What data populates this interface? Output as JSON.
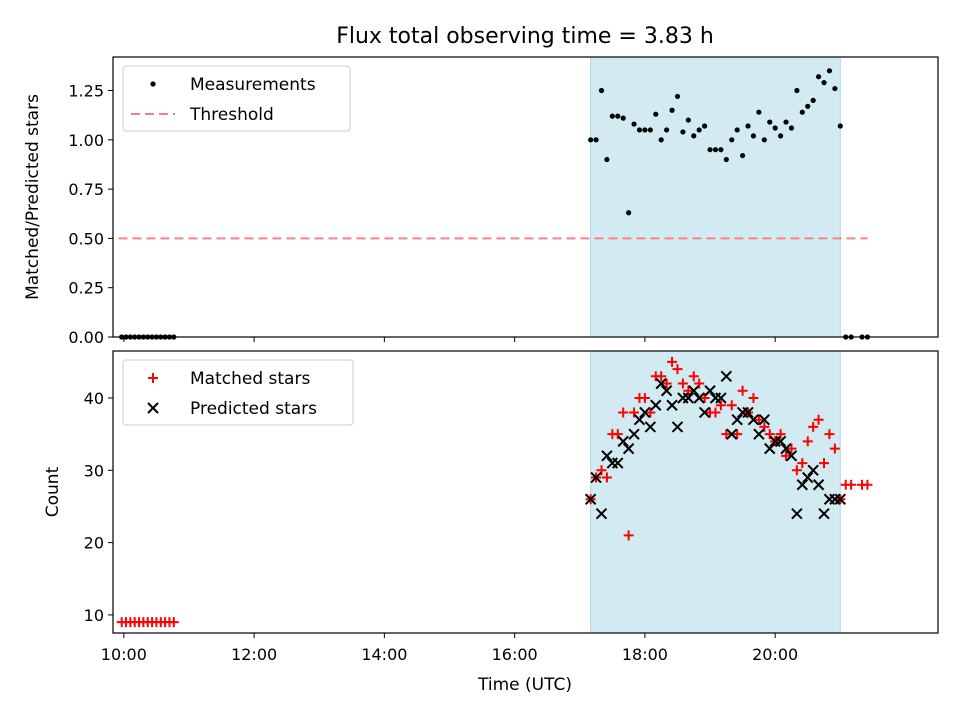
{
  "figure": {
    "title": "Flux total observing time = 3.83 h",
    "xlabel": "Time (UTC)",
    "x_ticks": [
      "10:00",
      "12:00",
      "14:00",
      "16:00",
      "18:00",
      "20:00"
    ]
  },
  "chart_data": [
    {
      "type": "scatter",
      "panel": "top",
      "ylabel": "Matched/Predicted stars",
      "xlim": [
        "09:50",
        "22:30"
      ],
      "ylim": [
        0,
        1.42
      ],
      "yticks": [
        "0.00",
        "0.25",
        "0.50",
        "0.75",
        "1.00",
        "1.25"
      ],
      "observing_window": [
        "17:10",
        "21:00"
      ],
      "shade_color": "#add8e6",
      "legend": [
        "Measurements",
        "Threshold"
      ],
      "series": [
        {
          "name": "Measurements",
          "color": "#000000",
          "marker": "dot",
          "x": [
            "09:58",
            "10:02",
            "10:06",
            "10:10",
            "10:14",
            "10:18",
            "10:22",
            "10:26",
            "10:30",
            "10:34",
            "10:38",
            "10:42",
            "10:46",
            "17:10",
            "17:15",
            "17:20",
            "17:25",
            "17:30",
            "17:35",
            "17:40",
            "17:45",
            "17:50",
            "17:55",
            "18:00",
            "18:05",
            "18:10",
            "18:15",
            "18:20",
            "18:25",
            "18:30",
            "18:35",
            "18:40",
            "18:45",
            "18:50",
            "18:55",
            "19:00",
            "19:05",
            "19:10",
            "19:15",
            "19:20",
            "19:25",
            "19:30",
            "19:35",
            "19:40",
            "19:45",
            "19:50",
            "19:55",
            "20:00",
            "20:05",
            "20:10",
            "20:15",
            "20:20",
            "20:25",
            "20:30",
            "20:35",
            "20:40",
            "20:45",
            "20:50",
            "20:55",
            "21:00",
            "21:05",
            "21:10",
            "21:20",
            "21:25"
          ],
          "y": [
            0,
            0,
            0,
            0,
            0,
            0,
            0,
            0,
            0,
            0,
            0,
            0,
            0,
            1.0,
            1.0,
            1.25,
            0.9,
            1.12,
            1.12,
            1.11,
            0.63,
            1.08,
            1.05,
            1.05,
            1.05,
            1.13,
            1.0,
            1.05,
            1.15,
            1.22,
            1.04,
            1.1,
            1.02,
            1.05,
            1.07,
            0.95,
            0.95,
            0.95,
            0.9,
            1.0,
            1.05,
            0.92,
            1.07,
            1.02,
            1.14,
            1.0,
            1.09,
            1.06,
            1.02,
            1.09,
            1.06,
            1.25,
            1.14,
            1.17,
            1.2,
            1.32,
            1.29,
            1.35,
            1.26,
            1.07,
            0,
            0,
            0,
            0
          ]
        },
        {
          "name": "Threshold",
          "color": "#ff7f7f",
          "style": "dashed",
          "x": [
            "09:55",
            "21:25"
          ],
          "y": [
            0.5,
            0.5
          ]
        }
      ]
    },
    {
      "type": "scatter",
      "panel": "bottom",
      "ylabel": "Count",
      "xlim": [
        "09:50",
        "22:30"
      ],
      "ylim": [
        7.5,
        46.5
      ],
      "yticks": [
        "10",
        "20",
        "30",
        "40"
      ],
      "observing_window": [
        "17:10",
        "21:00"
      ],
      "shade_color": "#add8e6",
      "legend": [
        "Matched stars",
        "Predicted stars"
      ],
      "series": [
        {
          "name": "Matched stars",
          "color": "#ff0000",
          "marker": "plus",
          "x": [
            "09:58",
            "10:02",
            "10:06",
            "10:10",
            "10:14",
            "10:18",
            "10:22",
            "10:26",
            "10:30",
            "10:34",
            "10:38",
            "10:42",
            "10:46",
            "17:10",
            "17:15",
            "17:20",
            "17:25",
            "17:30",
            "17:35",
            "17:40",
            "17:45",
            "17:50",
            "17:55",
            "18:00",
            "18:05",
            "18:10",
            "18:15",
            "18:20",
            "18:25",
            "18:30",
            "18:35",
            "18:40",
            "18:45",
            "18:50",
            "18:55",
            "19:00",
            "19:05",
            "19:10",
            "19:15",
            "19:20",
            "19:25",
            "19:30",
            "19:35",
            "19:40",
            "19:45",
            "19:50",
            "19:55",
            "20:00",
            "20:05",
            "20:10",
            "20:15",
            "20:20",
            "20:25",
            "20:30",
            "20:35",
            "20:40",
            "20:45",
            "20:50",
            "20:55",
            "21:00",
            "21:05",
            "21:10",
            "21:20",
            "21:25"
          ],
          "y": [
            9,
            9,
            9,
            9,
            9,
            9,
            9,
            9,
            9,
            9,
            9,
            9,
            9,
            26,
            29,
            30,
            29,
            35,
            35,
            38,
            21,
            38,
            40,
            40,
            38,
            43,
            43,
            42,
            45,
            44,
            42,
            41,
            43,
            42,
            40,
            38,
            38,
            39,
            35,
            39,
            35,
            41,
            38,
            40,
            37,
            36,
            35,
            34,
            35,
            32,
            33,
            30,
            31,
            34,
            36,
            37,
            31,
            35,
            33,
            26,
            28,
            28,
            28,
            28
          ]
        },
        {
          "name": "Predicted stars",
          "color": "#000000",
          "marker": "x",
          "x": [
            "17:10",
            "17:15",
            "17:20",
            "17:25",
            "17:30",
            "17:35",
            "17:40",
            "17:45",
            "17:50",
            "17:55",
            "18:00",
            "18:05",
            "18:10",
            "18:15",
            "18:20",
            "18:25",
            "18:30",
            "18:35",
            "18:40",
            "18:45",
            "18:50",
            "18:55",
            "19:00",
            "19:05",
            "19:10",
            "19:15",
            "19:20",
            "19:25",
            "19:30",
            "19:35",
            "19:40",
            "19:45",
            "19:50",
            "19:55",
            "20:00",
            "20:05",
            "20:10",
            "20:15",
            "20:20",
            "20:25",
            "20:30",
            "20:35",
            "20:40",
            "20:45",
            "20:50",
            "20:55",
            "21:00"
          ],
          "y": [
            26,
            29,
            24,
            32,
            31,
            31,
            34,
            33,
            35,
            37,
            38,
            36,
            39,
            42,
            41,
            39,
            36,
            40,
            40,
            41,
            40,
            38,
            41,
            40,
            40,
            43,
            35,
            37,
            38,
            38,
            37,
            35,
            37,
            33,
            34,
            34,
            33,
            32,
            24,
            28,
            29,
            30,
            28,
            24,
            26,
            26,
            26
          ]
        }
      ]
    }
  ]
}
